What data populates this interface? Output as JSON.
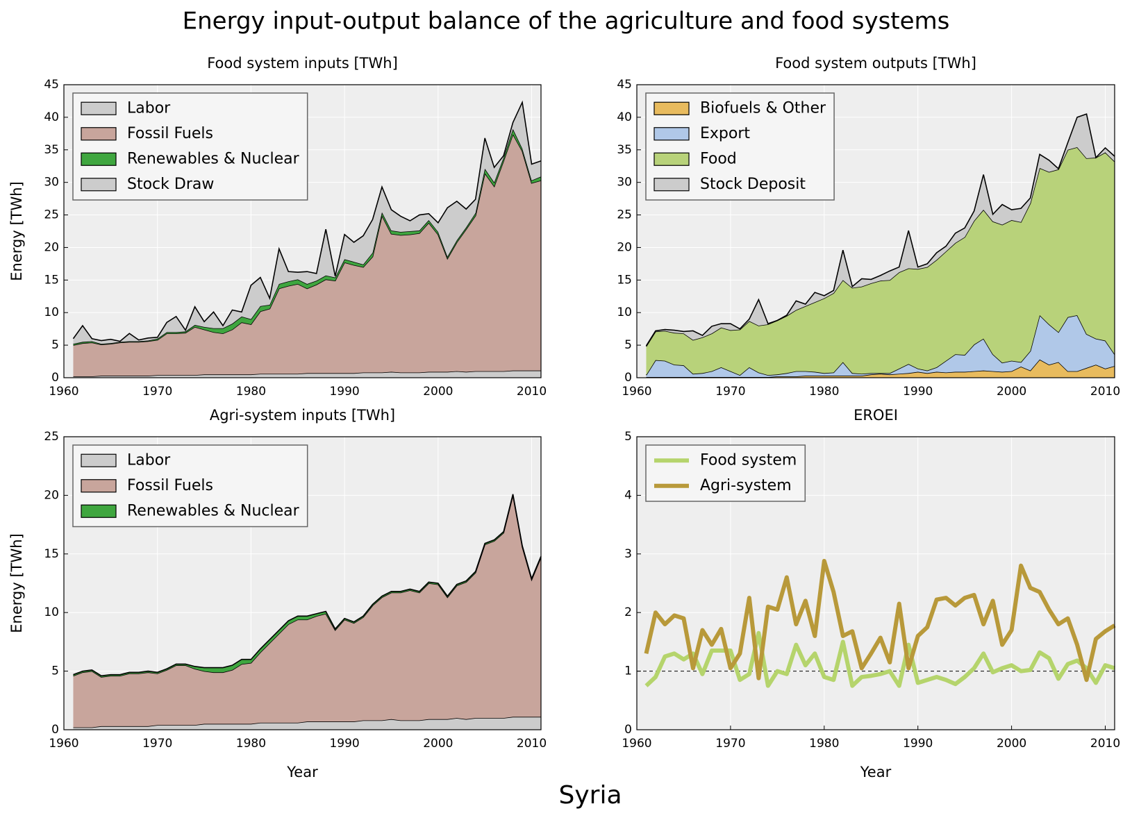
{
  "title": "Energy input-output balance of the agriculture and food systems",
  "caption": "Syria",
  "chart_data": [
    {
      "type": "stacked_area",
      "title": "Food system inputs [TWh]",
      "ylabel": "Energy [TWh]",
      "x": [
        1961,
        1962,
        1963,
        1964,
        1965,
        1966,
        1967,
        1968,
        1969,
        1970,
        1971,
        1972,
        1973,
        1974,
        1975,
        1976,
        1977,
        1978,
        1979,
        1980,
        1981,
        1982,
        1983,
        1984,
        1985,
        1986,
        1987,
        1988,
        1989,
        1990,
        1991,
        1992,
        1993,
        1994,
        1995,
        1996,
        1997,
        1998,
        1999,
        2000,
        2001,
        2002,
        2003,
        2004,
        2005,
        2006,
        2007,
        2008,
        2009,
        2010,
        2011
      ],
      "series": [
        {
          "name": "Labor",
          "color": "#cccccc",
          "values": [
            0.2,
            0.2,
            0.2,
            0.3,
            0.3,
            0.3,
            0.3,
            0.3,
            0.3,
            0.4,
            0.4,
            0.4,
            0.4,
            0.4,
            0.5,
            0.5,
            0.5,
            0.5,
            0.5,
            0.5,
            0.6,
            0.6,
            0.6,
            0.6,
            0.6,
            0.7,
            0.7,
            0.7,
            0.7,
            0.7,
            0.7,
            0.8,
            0.8,
            0.8,
            0.9,
            0.8,
            0.8,
            0.8,
            0.9,
            0.9,
            0.9,
            1.0,
            0.9,
            1.0,
            1.0,
            1.0,
            1.0,
            1.1,
            1.1,
            1.1,
            1.1
          ]
        },
        {
          "name": "Fossil Fuels",
          "color": "#c8a59c",
          "values": [
            4.8,
            5.1,
            5.2,
            4.8,
            4.9,
            5.1,
            5.2,
            5.2,
            5.3,
            5.4,
            6.4,
            6.4,
            6.5,
            7.4,
            6.9,
            6.5,
            6.3,
            6.9,
            8.0,
            7.7,
            9.6,
            10.0,
            13.1,
            13.5,
            13.8,
            13.0,
            13.6,
            14.4,
            14.2,
            17.0,
            16.6,
            16.2,
            17.8,
            24.1,
            21.2,
            21.1,
            21.2,
            21.4,
            22.9,
            21.1,
            17.4,
            19.8,
            21.9,
            23.9,
            30.4,
            28.4,
            32.3,
            36.3,
            33.7,
            28.8,
            29.2
          ]
        },
        {
          "name": "Renewables & Nuclear",
          "color": "#3fa63f",
          "values": [
            0.2,
            0.2,
            0.2,
            0.1,
            0.1,
            0.1,
            0.1,
            0.1,
            0.1,
            0.2,
            0.2,
            0.2,
            0.2,
            0.3,
            0.4,
            0.6,
            0.8,
            0.9,
            0.9,
            0.8,
            0.8,
            0.6,
            0.7,
            0.7,
            0.7,
            0.7,
            0.6,
            0.6,
            0.5,
            0.5,
            0.5,
            0.4,
            0.6,
            0.5,
            0.5,
            0.5,
            0.5,
            0.4,
            0.4,
            0.4,
            0.3,
            0.3,
            0.3,
            0.4,
            0.7,
            0.6,
            0.5,
            0.8,
            0.4,
            0.4,
            0.6
          ]
        },
        {
          "name": "Stock Draw",
          "color": "#cccccc",
          "values": [
            0.8,
            2.5,
            0.4,
            0.5,
            0.6,
            0.1,
            1.2,
            0.2,
            0.4,
            0.2,
            1.5,
            2.4,
            0.2,
            2.8,
            0.8,
            2.5,
            0.4,
            2.1,
            0.7,
            5.2,
            4.4,
            1.0,
            5.4,
            1.5,
            1.1,
            1.9,
            1.1,
            7.1,
            0.2,
            3.8,
            3.0,
            4.4,
            5.1,
            3.9,
            3.2,
            2.4,
            1.6,
            2.4,
            1.0,
            1.4,
            7.5,
            6.0,
            2.8,
            2.1,
            4.7,
            2.3,
            0.3,
            1.0,
            7.1,
            2.5,
            2.4
          ]
        }
      ],
      "xlim": [
        1960,
        2011
      ],
      "xticks": [
        1960,
        1970,
        1980,
        1990,
        2000,
        2010
      ],
      "ylim": [
        0,
        45
      ],
      "yticks": [
        0,
        5,
        10,
        15,
        20,
        25,
        30,
        35,
        40,
        45
      ],
      "grid": true,
      "legend": "upper left"
    },
    {
      "type": "stacked_area",
      "title": "Food system outputs [TWh]",
      "x": [
        1961,
        1962,
        1963,
        1964,
        1965,
        1966,
        1967,
        1968,
        1969,
        1970,
        1971,
        1972,
        1973,
        1974,
        1975,
        1976,
        1977,
        1978,
        1979,
        1980,
        1981,
        1982,
        1983,
        1984,
        1985,
        1986,
        1987,
        1988,
        1989,
        1990,
        1991,
        1992,
        1993,
        1994,
        1995,
        1996,
        1997,
        1998,
        1999,
        2000,
        2001,
        2002,
        2003,
        2004,
        2005,
        2006,
        2007,
        2008,
        2009,
        2010,
        2011
      ],
      "series": [
        {
          "name": "Biofuels & Other",
          "color": "#e8bb5e",
          "values": [
            0.1,
            0.1,
            0.1,
            0.1,
            0.1,
            0.1,
            0.1,
            0.1,
            0.1,
            0.1,
            0.1,
            0.1,
            0.1,
            0.1,
            0.2,
            0.2,
            0.2,
            0.3,
            0.3,
            0.3,
            0.3,
            0.3,
            0.3,
            0.3,
            0.5,
            0.6,
            0.5,
            0.6,
            0.7,
            0.9,
            0.7,
            0.9,
            0.8,
            0.9,
            0.9,
            1.0,
            1.1,
            1.0,
            0.9,
            1.0,
            1.7,
            1.1,
            2.8,
            2.0,
            2.4,
            1.0,
            1.0,
            1.5,
            2.0,
            1.4,
            1.8
          ]
        },
        {
          "name": "Export",
          "color": "#b0c8e8",
          "values": [
            0.3,
            2.6,
            2.5,
            1.9,
            1.8,
            0.5,
            0.6,
            0.9,
            1.5,
            0.9,
            0.3,
            1.5,
            0.7,
            0.3,
            0.3,
            0.5,
            0.8,
            0.7,
            0.6,
            0.4,
            0.5,
            2.1,
            0.4,
            0.3,
            0.2,
            0.1,
            0.2,
            0.8,
            1.4,
            0.5,
            0.4,
            0.7,
            1.8,
            2.7,
            2.6,
            4.1,
            4.9,
            2.6,
            1.4,
            1.6,
            0.7,
            3.0,
            6.8,
            6.2,
            4.6,
            8.3,
            8.6,
            5.2,
            4.0,
            4.3,
            1.8
          ]
        },
        {
          "name": "Food",
          "color": "#b8d27a",
          "values": [
            4.4,
            4.4,
            4.6,
            4.9,
            4.9,
            5.2,
            5.5,
            5.8,
            6.1,
            6.3,
            7.0,
            7.1,
            7.2,
            7.8,
            8.3,
            8.8,
            9.4,
            10.0,
            10.7,
            11.5,
            12.2,
            12.6,
            13.1,
            13.4,
            13.8,
            14.2,
            14.3,
            14.8,
            14.7,
            15.3,
            15.9,
            16.5,
            16.8,
            17.1,
            18.1,
            19.0,
            19.8,
            20.4,
            21.2,
            21.6,
            21.5,
            22.7,
            22.6,
            23.4,
            25.0,
            25.7,
            25.8,
            27.0,
            27.8,
            28.9,
            29.6
          ]
        },
        {
          "name": "Stock Deposit",
          "color": "#cccccc",
          "values": [
            0.1,
            0.1,
            0.2,
            0.4,
            0.3,
            1.4,
            0.3,
            1.1,
            0.6,
            1.0,
            0.1,
            0.3,
            4.0,
            0.1,
            0.0,
            0.1,
            1.4,
            0.3,
            1.5,
            0.4,
            0.4,
            4.6,
            0.2,
            1.2,
            0.6,
            0.8,
            1.4,
            0.8,
            5.8,
            0.3,
            0.5,
            1.1,
            0.8,
            1.5,
            1.4,
            1.5,
            5.4,
            1.1,
            3.1,
            1.6,
            2.1,
            0.8,
            2.1,
            1.8,
            0.1,
            1.1,
            4.6,
            6.8,
            0.0,
            0.7,
            0.8
          ]
        }
      ],
      "xlim": [
        1960,
        2011
      ],
      "xticks": [
        1960,
        1970,
        1980,
        1990,
        2000,
        2010
      ],
      "ylim": [
        0,
        45
      ],
      "yticks": [
        0,
        5,
        10,
        15,
        20,
        25,
        30,
        35,
        40,
        45
      ],
      "grid": true,
      "legend": "upper left"
    },
    {
      "type": "stacked_area",
      "title": "Agri-system inputs [TWh]",
      "ylabel": "Energy [TWh]",
      "xlabel": "Year",
      "x": [
        1961,
        1962,
        1963,
        1964,
        1965,
        1966,
        1967,
        1968,
        1969,
        1970,
        1971,
        1972,
        1973,
        1974,
        1975,
        1976,
        1977,
        1978,
        1979,
        1980,
        1981,
        1982,
        1983,
        1984,
        1985,
        1986,
        1987,
        1988,
        1989,
        1990,
        1991,
        1992,
        1993,
        1994,
        1995,
        1996,
        1997,
        1998,
        1999,
        2000,
        2001,
        2002,
        2003,
        2004,
        2005,
        2006,
        2007,
        2008,
        2009,
        2010,
        2011
      ],
      "series": [
        {
          "name": "Labor",
          "color": "#cccccc",
          "values": [
            0.2,
            0.2,
            0.2,
            0.3,
            0.3,
            0.3,
            0.3,
            0.3,
            0.3,
            0.4,
            0.4,
            0.4,
            0.4,
            0.4,
            0.5,
            0.5,
            0.5,
            0.5,
            0.5,
            0.5,
            0.6,
            0.6,
            0.6,
            0.6,
            0.6,
            0.7,
            0.7,
            0.7,
            0.7,
            0.7,
            0.7,
            0.8,
            0.8,
            0.8,
            0.9,
            0.8,
            0.8,
            0.8,
            0.9,
            0.9,
            0.9,
            1.0,
            0.9,
            1.0,
            1.0,
            1.0,
            1.0,
            1.1,
            1.1,
            1.1,
            1.1
          ]
        },
        {
          "name": "Fossil Fuels",
          "color": "#c8a59c",
          "values": [
            4.4,
            4.7,
            4.8,
            4.2,
            4.3,
            4.3,
            4.5,
            4.5,
            4.6,
            4.4,
            4.7,
            5.1,
            5.1,
            4.8,
            4.5,
            4.4,
            4.4,
            4.6,
            5.1,
            5.2,
            6.0,
            6.8,
            7.6,
            8.4,
            8.8,
            8.7,
            9.0,
            9.2,
            7.8,
            8.7,
            8.4,
            8.8,
            9.8,
            10.5,
            10.8,
            10.9,
            11.1,
            10.9,
            11.6,
            11.5,
            10.4,
            11.3,
            11.7,
            12.4,
            14.8,
            15.1,
            15.8,
            18.9,
            14.5,
            11.7,
            13.6
          ]
        },
        {
          "name": "Renewables & Nuclear",
          "color": "#3fa63f",
          "values": [
            0.1,
            0.1,
            0.1,
            0.1,
            0.1,
            0.1,
            0.1,
            0.1,
            0.1,
            0.1,
            0.1,
            0.1,
            0.1,
            0.2,
            0.3,
            0.4,
            0.4,
            0.4,
            0.4,
            0.3,
            0.3,
            0.3,
            0.3,
            0.3,
            0.3,
            0.3,
            0.2,
            0.2,
            0.1,
            0.1,
            0.1,
            0.1,
            0.1,
            0.1,
            0.1,
            0.1,
            0.1,
            0.1,
            0.1,
            0.1,
            0.1,
            0.1,
            0.1,
            0.1,
            0.1,
            0.1,
            0.1,
            0.1,
            0.1,
            0.1,
            0.1
          ]
        }
      ],
      "xlim": [
        1960,
        2011
      ],
      "xticks": [
        1960,
        1970,
        1980,
        1990,
        2000,
        2010
      ],
      "ylim": [
        0,
        25
      ],
      "yticks": [
        0,
        5,
        10,
        15,
        20,
        25
      ],
      "grid": true,
      "legend": "upper left"
    },
    {
      "type": "line",
      "title": "EROEI",
      "xlabel": "Year",
      "x": [
        1961,
        1962,
        1963,
        1964,
        1965,
        1966,
        1967,
        1968,
        1969,
        1970,
        1971,
        1972,
        1973,
        1974,
        1975,
        1976,
        1977,
        1978,
        1979,
        1980,
        1981,
        1982,
        1983,
        1984,
        1985,
        1986,
        1987,
        1988,
        1989,
        1990,
        1991,
        1992,
        1993,
        1994,
        1995,
        1996,
        1997,
        1998,
        1999,
        2000,
        2001,
        2002,
        2003,
        2004,
        2005,
        2006,
        2007,
        2008,
        2009,
        2010,
        2011
      ],
      "series": [
        {
          "name": "Food system",
          "color": "#b5d46c",
          "values": [
            0.75,
            0.9,
            1.25,
            1.3,
            1.2,
            1.3,
            0.95,
            1.35,
            1.35,
            1.35,
            0.85,
            0.95,
            1.65,
            0.75,
            1.0,
            0.95,
            1.45,
            1.1,
            1.3,
            0.9,
            0.85,
            1.5,
            0.75,
            0.9,
            0.92,
            0.95,
            1.0,
            0.75,
            1.45,
            0.8,
            0.85,
            0.9,
            0.85,
            0.78,
            0.9,
            1.05,
            1.3,
            0.98,
            1.05,
            1.1,
            1.0,
            1.02,
            1.32,
            1.22,
            0.87,
            1.12,
            1.18,
            1.05,
            0.8,
            1.1,
            1.05
          ]
        },
        {
          "name": "Agri-system",
          "color": "#b8993a",
          "values": [
            1.3,
            2.0,
            1.8,
            1.95,
            1.9,
            1.05,
            1.7,
            1.45,
            1.72,
            1.05,
            1.3,
            2.25,
            0.88,
            2.1,
            2.05,
            2.6,
            1.8,
            2.2,
            1.6,
            2.88,
            2.35,
            1.6,
            1.68,
            1.05,
            1.3,
            1.57,
            1.15,
            2.15,
            1.05,
            1.6,
            1.75,
            2.22,
            2.25,
            2.12,
            2.25,
            2.3,
            1.8,
            2.2,
            1.45,
            1.7,
            2.8,
            2.42,
            2.35,
            2.05,
            1.8,
            1.9,
            1.45,
            0.85,
            1.55,
            1.68,
            1.78
          ]
        }
      ],
      "hline": 1,
      "xlim": [
        1960,
        2011
      ],
      "xticks": [
        1960,
        1970,
        1980,
        1990,
        2000,
        2010
      ],
      "ylim": [
        0,
        5
      ],
      "yticks": [
        0,
        1,
        2,
        3,
        4,
        5
      ],
      "grid": true,
      "legend": "upper left"
    }
  ]
}
